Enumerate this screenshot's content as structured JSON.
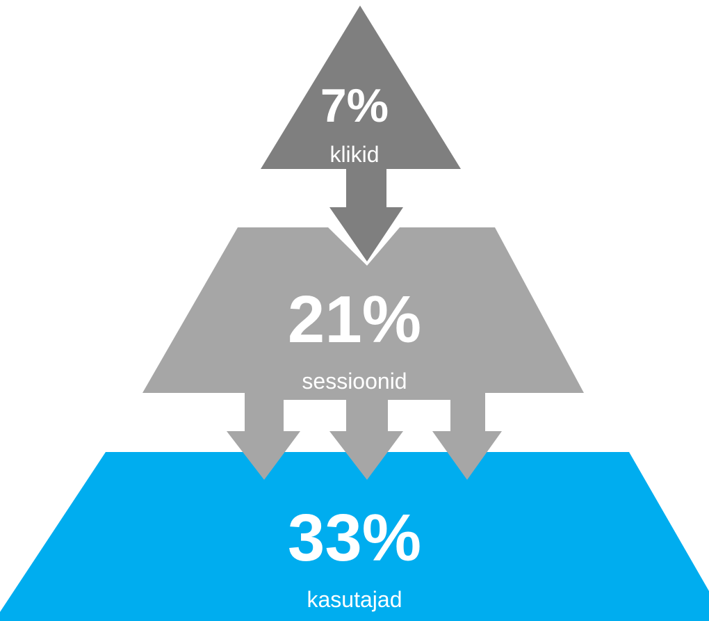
{
  "colors": {
    "top_tier": "#7f7f7f",
    "middle_tier": "#a6a6a6",
    "bottom_tier": "#00adef",
    "text": "#ffffff",
    "background": "#ffffff"
  },
  "tiers": {
    "top": {
      "percent": "7%",
      "label": "klikid"
    },
    "middle": {
      "percent": "21%",
      "label": "sessioonid"
    },
    "bottom": {
      "percent": "33%",
      "label": "kasutajad"
    }
  }
}
